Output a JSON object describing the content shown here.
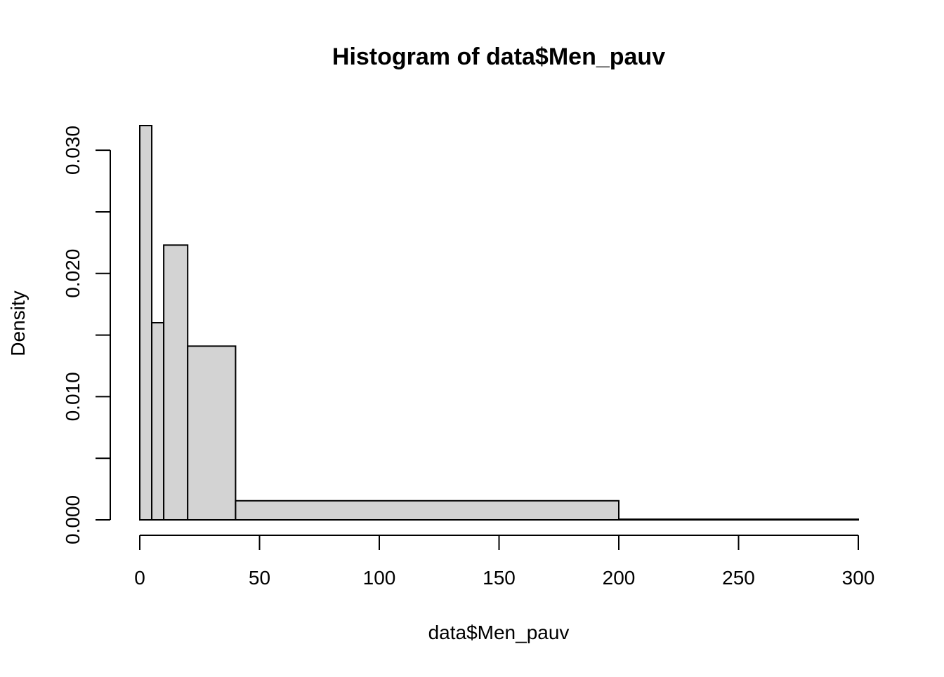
{
  "chart_data": {
    "type": "bar",
    "subtype": "histogram",
    "title": "Histogram of data$Men_pauv",
    "xlabel": "data$Men_pauv",
    "ylabel": "Density",
    "xlim": [
      0,
      300
    ],
    "ylim": [
      0,
      0.032
    ],
    "x_ticks": [
      0,
      50,
      100,
      150,
      200,
      250,
      300
    ],
    "x_tick_labels": [
      "0",
      "50",
      "100",
      "150",
      "200",
      "250",
      "300"
    ],
    "y_ticks": [
      0,
      0.005,
      0.01,
      0.015,
      0.02,
      0.025,
      0.03
    ],
    "y_tick_labels": [
      "0.000",
      "",
      "0.010",
      "",
      "0.020",
      "",
      "0.030"
    ],
    "grid": false,
    "bar_fill": "#d3d3d3",
    "bar_stroke": "#000000",
    "bins": [
      {
        "x0": 0,
        "x1": 5,
        "density": 0.032
      },
      {
        "x0": 5,
        "x1": 10,
        "density": 0.016
      },
      {
        "x0": 10,
        "x1": 20,
        "density": 0.0223
      },
      {
        "x0": 20,
        "x1": 40,
        "density": 0.0141
      },
      {
        "x0": 40,
        "x1": 200,
        "density": 0.00155
      },
      {
        "x0": 200,
        "x1": 300,
        "density": 5e-05
      }
    ]
  }
}
